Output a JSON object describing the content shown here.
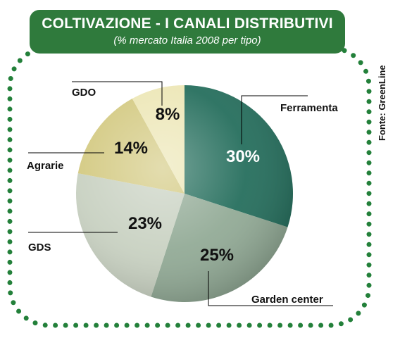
{
  "title": "COLTIVAZIONE - I CANALI DISTRIBUTIVI",
  "subtitle": "(% mercato Italia 2008 per tipo)",
  "source": "Fonte: GreenLine",
  "colors": {
    "banner": "#2f7a3c",
    "dots": "#23803a"
  },
  "chart_data": {
    "type": "pie",
    "title": "COLTIVAZIONE - I CANALI DISTRIBUTIVI",
    "subtitle": "(% mercato Italia 2008 per tipo)",
    "slices": [
      {
        "label": "Ferramenta",
        "value": 30,
        "value_label": "30%",
        "color": "#1f6a58"
      },
      {
        "label": "Garden center",
        "value": 25,
        "value_label": "25%",
        "color": "#8fa893"
      },
      {
        "label": "GDS",
        "value": 23,
        "value_label": "23%",
        "color": "#c7d0c0"
      },
      {
        "label": "Agrarie",
        "value": 14,
        "value_label": "14%",
        "color": "#d2c87e"
      },
      {
        "label": "GDO",
        "value": 8,
        "value_label": "8%",
        "color": "#ece6b4"
      }
    ],
    "start_angle_deg": 0,
    "direction": "clockwise"
  }
}
